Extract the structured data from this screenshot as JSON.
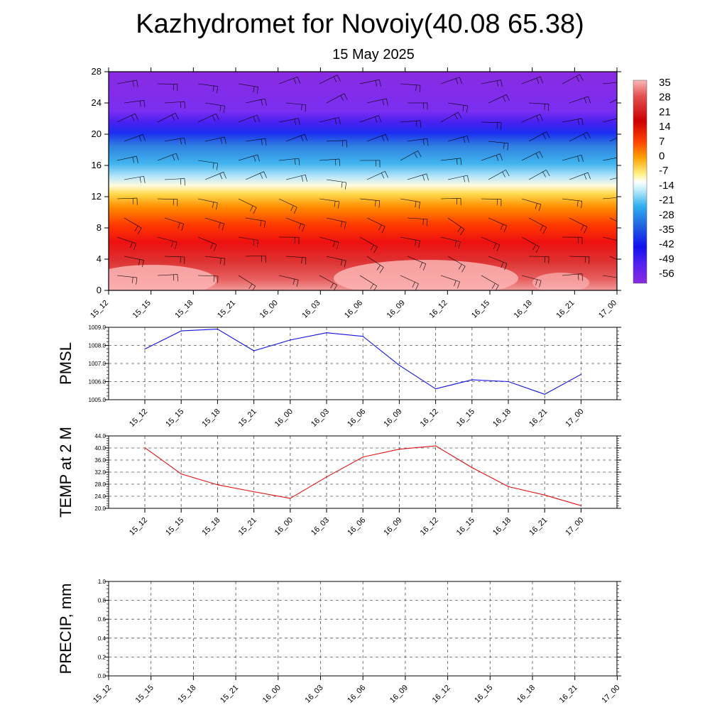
{
  "title": "Kazhydromet for Novoiy(40.08 65.38)",
  "subtitle": "15 May 2025",
  "colors": {
    "pmsl_line": "#1010e0",
    "temp_line": "#e01010",
    "precip_line": "#008000",
    "grid": "#555555",
    "axis": "#000000"
  },
  "chart_data": [
    {
      "id": "section",
      "type": "heatmap",
      "description_of_fields": "temperature cross-section with wind barbs",
      "x": [
        "15_12",
        "15_15",
        "15_18",
        "15_21",
        "16_00",
        "16_03",
        "16_06",
        "16_09",
        "16_12",
        "16_15",
        "16_18",
        "16_21",
        "17_00"
      ],
      "ylim": [
        0,
        28
      ],
      "yticks": [
        0,
        4,
        8,
        12,
        16,
        20,
        24,
        28
      ],
      "colorbar": {
        "labels": [
          "35",
          "28",
          "21",
          "14",
          "7",
          "0",
          "-7",
          "-14",
          "-21",
          "-28",
          "-35",
          "-42",
          "-49",
          "-56"
        ],
        "range": [
          -63,
          37
        ]
      }
    },
    {
      "id": "pmsl",
      "type": "line",
      "ylabel": "PMSL",
      "x": [
        "15_12",
        "15_15",
        "15_18",
        "15_21",
        "16_00",
        "16_03",
        "16_06",
        "16_09",
        "16_12",
        "16_15",
        "16_18",
        "16_21",
        "17_00"
      ],
      "values": [
        1007.8,
        1008.8,
        1008.9,
        1007.7,
        1008.3,
        1008.7,
        1008.5,
        1006.9,
        1005.6,
        1006.1,
        1006.0,
        1005.3,
        1006.4
      ],
      "ylim": [
        1005.0,
        1009.0
      ],
      "yticks": [
        "1005.0",
        "1006.0",
        "1007.0",
        "1008.0",
        "1009.0"
      ]
    },
    {
      "id": "temp",
      "type": "line",
      "ylabel": "TEMP at 2 M",
      "x": [
        "15_12",
        "15_15",
        "15_18",
        "15_21",
        "16_00",
        "16_03",
        "16_06",
        "16_09",
        "16_12",
        "16_15",
        "16_18",
        "16_21",
        "17_00"
      ],
      "values": [
        40.1,
        31.4,
        27.8,
        25.5,
        23.3,
        30.4,
        37.0,
        39.6,
        40.7,
        33.5,
        27.2,
        24.4,
        20.9
      ],
      "ylim": [
        20.0,
        44.0
      ],
      "yticks": [
        "20.0",
        "24.0",
        "28.0",
        "32.0",
        "36.0",
        "40.0",
        "44.0"
      ]
    },
    {
      "id": "precip",
      "type": "line",
      "ylabel": "PRECIP, mm",
      "x": [
        "15_12",
        "15_15",
        "15_18",
        "15_21",
        "16_00",
        "16_03",
        "16_06",
        "16_09",
        "16_12",
        "16_15",
        "16_18",
        "16_21",
        "17_00"
      ],
      "values": [
        0,
        0,
        0,
        0,
        0,
        0,
        0,
        0,
        0,
        0,
        0,
        0,
        0
      ],
      "ylim": [
        0.0,
        1.0
      ],
      "yticks": [
        "0.0",
        "0.2",
        "0.4",
        "0.6",
        "0.8",
        "1.0"
      ]
    }
  ]
}
